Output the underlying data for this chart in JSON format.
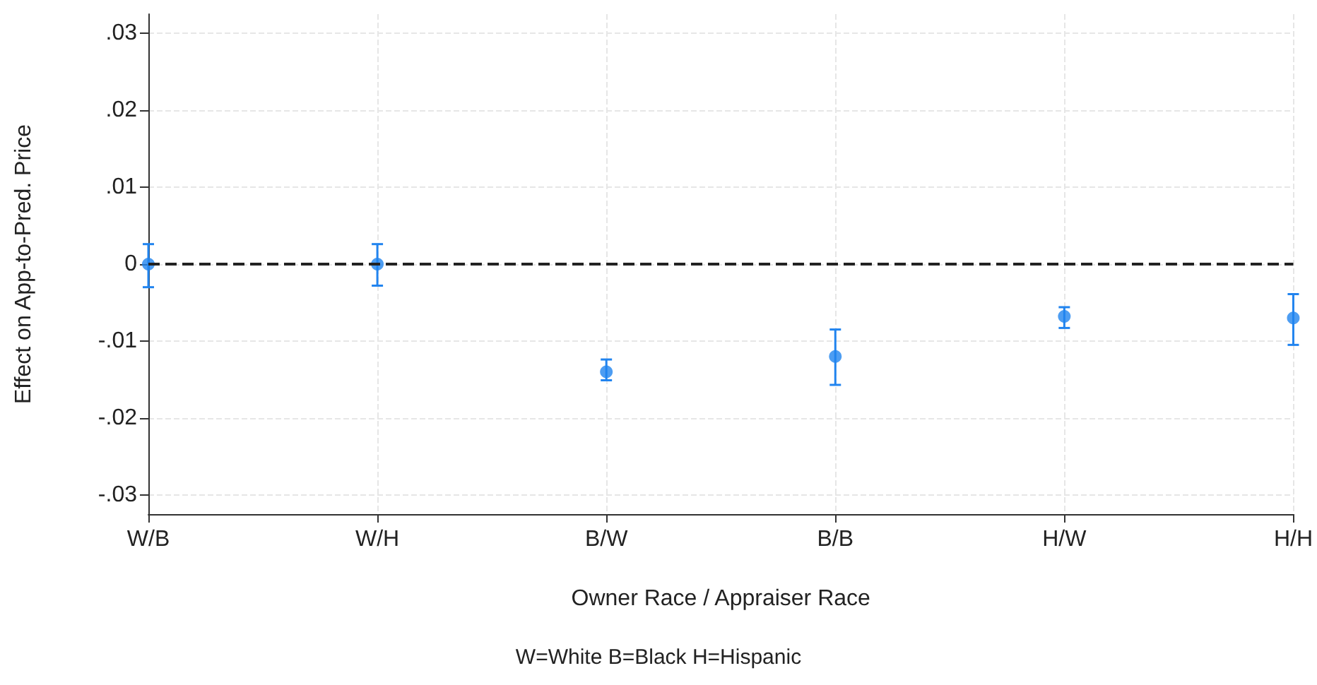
{
  "chart_data": {
    "type": "scatter",
    "xlabel": "Owner Race / Appraiser Race",
    "ylabel": "Effect on App-to-Pred. Price",
    "annotations": [
      "W=White B=Black H=Hispanic"
    ],
    "categories": [
      "W/B",
      "W/H",
      "B/W",
      "B/B",
      "H/W",
      "H/H"
    ],
    "series": [
      {
        "color": "#2184ef",
        "values": [
          0,
          0,
          -0.014,
          -0.012,
          -0.0068,
          -0.007
        ],
        "errors": [
          [
            -0.003,
            0.0026
          ],
          [
            -0.0028,
            0.0026
          ],
          [
            -0.0151,
            -0.0124
          ],
          [
            -0.0157,
            -0.0085
          ],
          [
            -0.0083,
            -0.0056
          ],
          [
            -0.0105,
            -0.0039
          ]
        ]
      }
    ],
    "ylim": [
      -0.0325,
      0.0325
    ],
    "yticks": [
      {
        "value": -0.03,
        "label": "-.03"
      },
      {
        "value": -0.02,
        "label": "-.02"
      },
      {
        "value": -0.01,
        "label": "-.01"
      },
      0,
      {
        "value": 0.01,
        "label": ".01"
      },
      {
        "value": 0.02,
        "label": ".02"
      },
      {
        "value": 0.03,
        "label": ".03"
      }
    ],
    "ref_lines": [
      {
        "axis": "y",
        "value": 0,
        "color": "#222222",
        "line_style": "dashed"
      }
    ],
    "grid": true,
    "marker": "circle"
  }
}
